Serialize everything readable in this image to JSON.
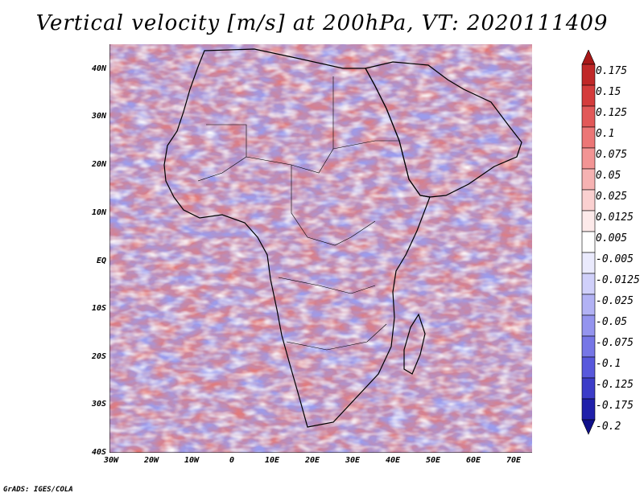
{
  "title": "Vertical velocity [m/s] at 200hPa, VT: 2020111409",
  "lat_labels": [
    "40N",
    "30N",
    "20N",
    "10N",
    "EQ",
    "10S",
    "20S",
    "30S",
    "40S"
  ],
  "lon_labels": [
    "30W",
    "20W",
    "10W",
    "0",
    "10E",
    "20E",
    "30E",
    "40E",
    "50E",
    "60E",
    "70E"
  ],
  "colorbar": {
    "labels": [
      "0.175",
      "0.15",
      "0.125",
      "0.1",
      "0.075",
      "0.05",
      "0.025",
      "0.0125",
      "0.005",
      "-0.005",
      "-0.0125",
      "-0.025",
      "-0.05",
      "-0.075",
      "-0.1",
      "-0.125",
      "-0.175",
      "-0.2"
    ],
    "colors": [
      "#a81818",
      "#c02828",
      "#d43c3c",
      "#e25858",
      "#ec7676",
      "#f29494",
      "#f6b2b2",
      "#fad0d0",
      "#fdeaea",
      "#ffffff",
      "#eaeafd",
      "#d0d0fa",
      "#b2b2f4",
      "#9494ee",
      "#7676e6",
      "#5858dc",
      "#3c3cc8",
      "#2020aa",
      "#10108a"
    ]
  },
  "footer": "GrADS: IGES/COLA"
}
